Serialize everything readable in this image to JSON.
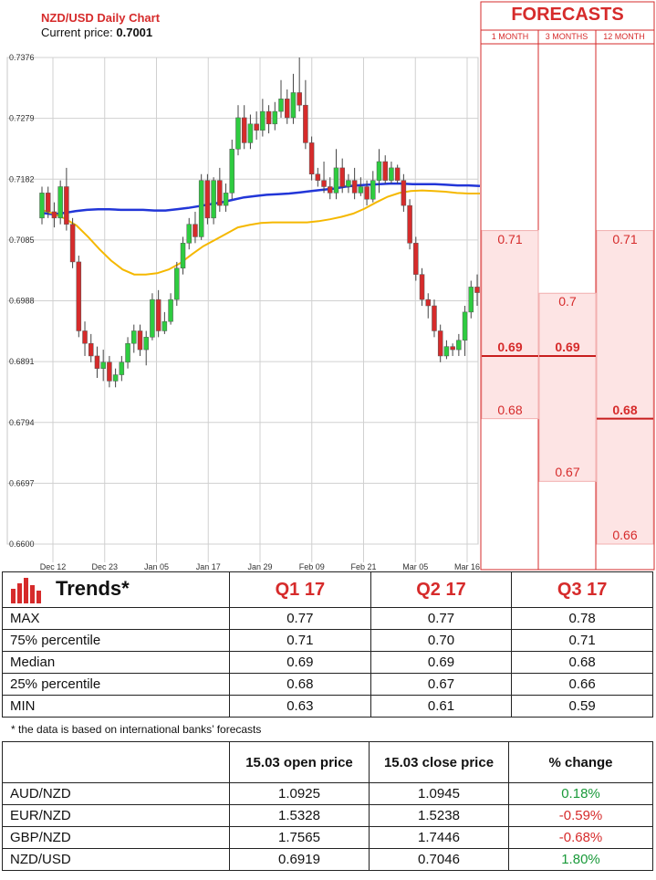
{
  "chart_data": {
    "type": "candlestick",
    "title": "NZD/USD Daily Chart",
    "current_price_label": "Current price:",
    "current_price": "0.7001",
    "y_ticks": [
      "0.7376",
      "0.7279",
      "0.7182",
      "0.7085",
      "0.6988",
      "0.6891",
      "0.6794",
      "0.6697",
      "0.6600"
    ],
    "x_ticks": [
      "Dec 12",
      "Dec 23",
      "Jan 05",
      "Jan 17",
      "Jan 29",
      "Feb 09",
      "Feb 21",
      "Mar 05",
      "Mar 16"
    ],
    "ylim": [
      0.66,
      0.7376
    ],
    "candles": [
      [
        0.712,
        0.716,
        0.711,
        0.717
      ],
      [
        0.716,
        0.713,
        0.712,
        0.717
      ],
      [
        0.713,
        0.712,
        0.7105,
        0.7145
      ],
      [
        0.712,
        0.717,
        0.711,
        0.718
      ],
      [
        0.717,
        0.711,
        0.71,
        0.72
      ],
      [
        0.711,
        0.705,
        0.704,
        0.712
      ],
      [
        0.705,
        0.694,
        0.693,
        0.706
      ],
      [
        0.694,
        0.692,
        0.69,
        0.6955
      ],
      [
        0.692,
        0.69,
        0.689,
        0.6935
      ],
      [
        0.69,
        0.688,
        0.6865,
        0.6915
      ],
      [
        0.688,
        0.689,
        0.686,
        0.691
      ],
      [
        0.689,
        0.686,
        0.685,
        0.69
      ],
      [
        0.686,
        0.687,
        0.685,
        0.688
      ],
      [
        0.687,
        0.689,
        0.686,
        0.69
      ],
      [
        0.689,
        0.692,
        0.688,
        0.693
      ],
      [
        0.692,
        0.694,
        0.6905,
        0.695
      ],
      [
        0.694,
        0.691,
        0.69,
        0.695
      ],
      [
        0.691,
        0.693,
        0.6885,
        0.694
      ],
      [
        0.693,
        0.699,
        0.6925,
        0.7
      ],
      [
        0.699,
        0.694,
        0.693,
        0.7005
      ],
      [
        0.694,
        0.6955,
        0.6935,
        0.697
      ],
      [
        0.6955,
        0.699,
        0.695,
        0.7
      ],
      [
        0.699,
        0.704,
        0.698,
        0.705
      ],
      [
        0.704,
        0.708,
        0.703,
        0.709
      ],
      [
        0.708,
        0.711,
        0.707,
        0.712
      ],
      [
        0.711,
        0.709,
        0.708,
        0.713
      ],
      [
        0.709,
        0.718,
        0.7085,
        0.719
      ],
      [
        0.718,
        0.712,
        0.711,
        0.719
      ],
      [
        0.712,
        0.718,
        0.711,
        0.7185
      ],
      [
        0.718,
        0.714,
        0.713,
        0.72
      ],
      [
        0.714,
        0.716,
        0.713,
        0.7175
      ],
      [
        0.716,
        0.723,
        0.715,
        0.7245
      ],
      [
        0.723,
        0.728,
        0.722,
        0.73
      ],
      [
        0.728,
        0.724,
        0.723,
        0.73
      ],
      [
        0.724,
        0.727,
        0.723,
        0.7285
      ],
      [
        0.727,
        0.726,
        0.7245,
        0.729
      ],
      [
        0.726,
        0.729,
        0.725,
        0.731
      ],
      [
        0.729,
        0.727,
        0.7255,
        0.73
      ],
      [
        0.727,
        0.729,
        0.726,
        0.7305
      ],
      [
        0.729,
        0.731,
        0.728,
        0.734
      ],
      [
        0.731,
        0.728,
        0.727,
        0.7325
      ],
      [
        0.728,
        0.732,
        0.727,
        0.735
      ],
      [
        0.732,
        0.73,
        0.729,
        0.7376
      ],
      [
        0.73,
        0.724,
        0.723,
        0.734
      ],
      [
        0.724,
        0.719,
        0.718,
        0.725
      ],
      [
        0.719,
        0.718,
        0.717,
        0.72
      ],
      [
        0.718,
        0.717,
        0.716,
        0.721
      ],
      [
        0.717,
        0.716,
        0.715,
        0.7185
      ],
      [
        0.716,
        0.72,
        0.715,
        0.723
      ],
      [
        0.72,
        0.717,
        0.716,
        0.7215
      ],
      [
        0.717,
        0.718,
        0.716,
        0.719
      ],
      [
        0.718,
        0.716,
        0.715,
        0.72
      ],
      [
        0.716,
        0.717,
        0.7155,
        0.7185
      ],
      [
        0.717,
        0.715,
        0.714,
        0.718
      ],
      [
        0.715,
        0.718,
        0.7145,
        0.7195
      ],
      [
        0.718,
        0.721,
        0.716,
        0.723
      ],
      [
        0.721,
        0.718,
        0.7175,
        0.722
      ],
      [
        0.718,
        0.72,
        0.7175,
        0.721
      ],
      [
        0.72,
        0.718,
        0.7175,
        0.7205
      ],
      [
        0.718,
        0.714,
        0.713,
        0.719
      ],
      [
        0.714,
        0.708,
        0.707,
        0.715
      ],
      [
        0.708,
        0.703,
        0.702,
        0.709
      ],
      [
        0.703,
        0.699,
        0.698,
        0.704
      ],
      [
        0.699,
        0.698,
        0.696,
        0.7
      ],
      [
        0.698,
        0.694,
        0.693,
        0.699
      ],
      [
        0.694,
        0.69,
        0.689,
        0.695
      ],
      [
        0.69,
        0.6915,
        0.6895,
        0.6925
      ],
      [
        0.6915,
        0.691,
        0.69,
        0.692
      ],
      [
        0.691,
        0.6925,
        0.69,
        0.6935
      ],
      [
        0.6925,
        0.697,
        0.69,
        0.698
      ],
      [
        0.697,
        0.701,
        0.696,
        0.702
      ],
      [
        0.701,
        0.7001,
        0.698,
        0.703
      ]
    ],
    "series": [
      {
        "values": [
          0.7128,
          0.7126,
          0.7128,
          0.7131,
          0.7133,
          0.7134,
          0.7134,
          0.7133,
          0.7133,
          0.7133,
          0.7132,
          0.7132,
          0.7134,
          0.7136,
          0.7139,
          0.7142,
          0.7145,
          0.7149,
          0.7153,
          0.7155,
          0.7157,
          0.7158,
          0.7159,
          0.7161,
          0.7163,
          0.7165,
          0.7167,
          0.717,
          0.7172,
          0.7173,
          0.7174,
          0.7175,
          0.7175,
          0.7174,
          0.7174,
          0.7174,
          0.7173,
          0.7172,
          0.7172,
          0.7171
        ]
      },
      {
        "values": [
          0.7133,
          0.7127,
          0.7119,
          0.7108,
          0.709,
          0.707,
          0.7052,
          0.7038,
          0.703,
          0.703,
          0.7032,
          0.7038,
          0.7048,
          0.7062,
          0.7075,
          0.7085,
          0.7095,
          0.7105,
          0.7109,
          0.7112,
          0.7113,
          0.7113,
          0.7113,
          0.7113,
          0.7115,
          0.7118,
          0.7122,
          0.7127,
          0.7135,
          0.7145,
          0.7154,
          0.716,
          0.7163,
          0.7164,
          0.7163,
          0.7162,
          0.716,
          0.7159,
          0.7159
        ]
      }
    ],
    "forecast_columns": [
      "1 MONTH",
      "3 MONTHS",
      "12 MONTH"
    ],
    "forecasts": [
      {
        "column": 0,
        "max": "0.71",
        "median": "0.69",
        "min": "0.68"
      },
      {
        "column": 1,
        "max": "0.7",
        "median": "0.69",
        "min": "0.67"
      },
      {
        "column": 2,
        "max": "0.71",
        "median": "0.68",
        "min": "0.66"
      }
    ]
  },
  "forecasts_title": "FORECASTS",
  "trends": {
    "title": "Trends*",
    "columns": [
      "Q1 17",
      "Q2 17",
      "Q3 17"
    ],
    "rows": [
      {
        "label": "MAX",
        "values": [
          "0.77",
          "0.77",
          "0.78"
        ]
      },
      {
        "label": "75% percentile",
        "values": [
          "0.71",
          "0.70",
          "0.71"
        ]
      },
      {
        "label": "Median",
        "values": [
          "0.69",
          "0.69",
          "0.68"
        ]
      },
      {
        "label": "25% percentile",
        "values": [
          "0.68",
          "0.67",
          "0.66"
        ]
      },
      {
        "label": "MIN",
        "values": [
          "0.63",
          "0.61",
          "0.59"
        ]
      }
    ],
    "note": "* the data is based on international banks’ forecasts",
    "icon": "bar-chart-icon"
  },
  "prices": {
    "columns": [
      "15.03 open price",
      "15.03 close price",
      "% change"
    ],
    "rows": [
      {
        "pair": "AUD/NZD",
        "open": "1.0925",
        "close": "1.0945",
        "change": "0.18%",
        "dir": "up"
      },
      {
        "pair": "EUR/NZD",
        "open": "1.5328",
        "close": "1.5238",
        "change": "-0.59%",
        "dir": "down"
      },
      {
        "pair": "GBP/NZD",
        "open": "1.7565",
        "close": "1.7446",
        "change": "-0.68%",
        "dir": "down"
      },
      {
        "pair": "NZD/USD",
        "open": "0.6919",
        "close": "0.7046",
        "change": "1.80%",
        "dir": "up"
      }
    ]
  },
  "colors": {
    "bull": "#2ecc40",
    "bear": "#d62b2b",
    "ma_fast": "#f5b800",
    "ma_slow": "#2236d8",
    "accent": "#d62b2b",
    "forecast_fill": "#fde4e4"
  }
}
